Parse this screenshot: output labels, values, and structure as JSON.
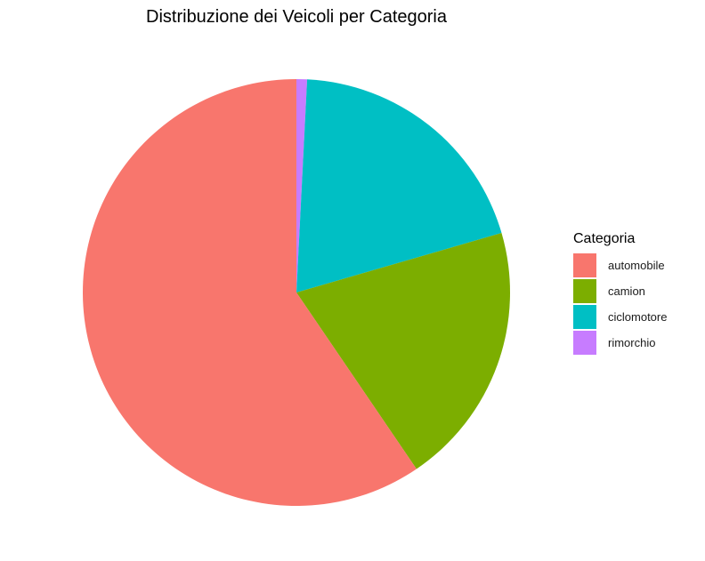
{
  "chart_data": {
    "type": "pie",
    "title": "Distribuzione dei Veicoli per Categoria",
    "legend_title": "Categoria",
    "legend_position": "right",
    "categories": [
      "automobile",
      "camion",
      "ciclomotore",
      "rimorchio"
    ],
    "values": [
      59.5,
      20.0,
      19.7,
      0.8
    ],
    "colors": [
      "#F8766D",
      "#7CAE00",
      "#00BFC4",
      "#C77CFF"
    ]
  }
}
